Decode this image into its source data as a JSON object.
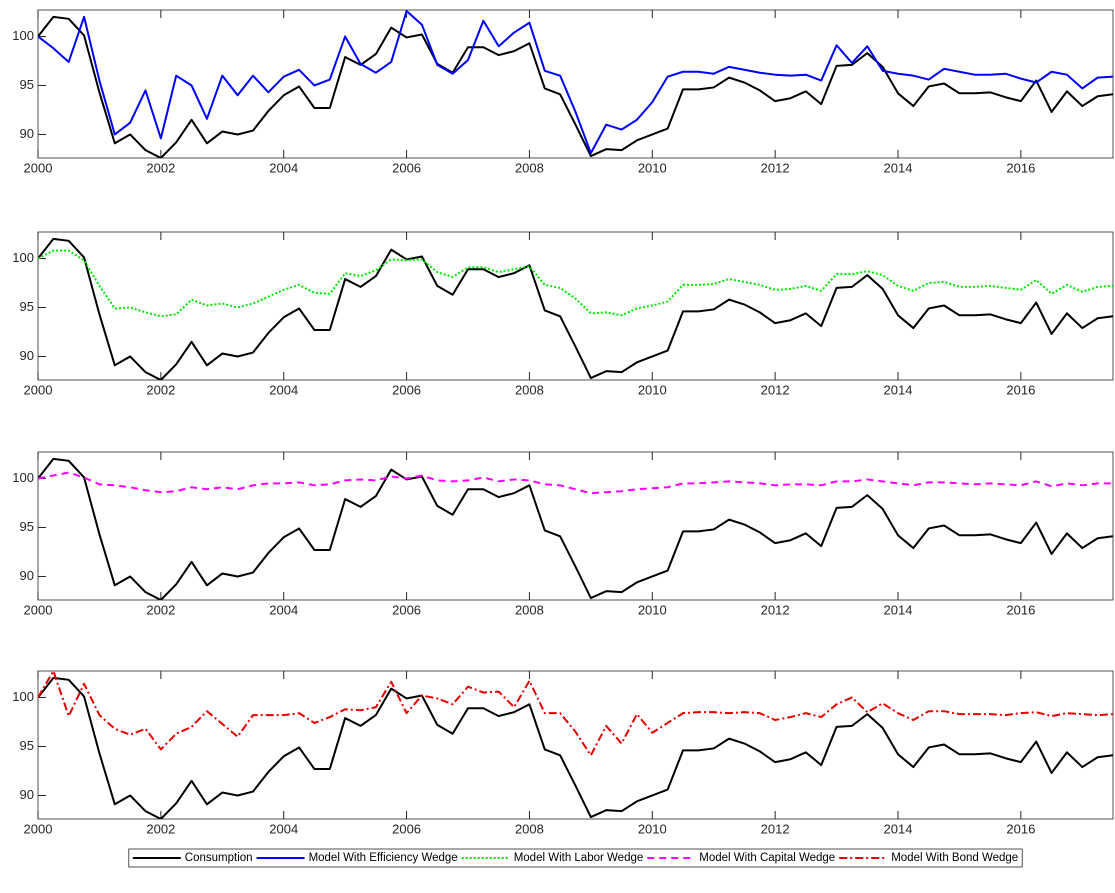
{
  "chart_data": [
    {
      "type": "line",
      "x": [
        2000,
        2000.25,
        2000.5,
        2000.75,
        2001,
        2001.25,
        2001.5,
        2001.75,
        2002,
        2002.25,
        2002.5,
        2002.75,
        2003,
        2003.25,
        2003.5,
        2003.75,
        2004,
        2004.25,
        2004.5,
        2004.75,
        2005,
        2005.25,
        2005.5,
        2005.75,
        2006,
        2006.25,
        2006.5,
        2006.75,
        2007,
        2007.25,
        2007.5,
        2007.75,
        2008,
        2008.25,
        2008.5,
        2008.75,
        2009,
        2009.25,
        2009.5,
        2009.75,
        2010,
        2010.25,
        2010.5,
        2010.75,
        2011,
        2011.25,
        2011.5,
        2011.75,
        2012,
        2012.25,
        2012.5,
        2012.75,
        2013,
        2013.25,
        2013.5,
        2013.75,
        2014,
        2014.25,
        2014.5,
        2014.75,
        2015,
        2015.25,
        2015.5,
        2015.75,
        2016,
        2016.25,
        2016.5,
        2016.75,
        2017,
        2017.25,
        2017.5
      ],
      "series": [
        {
          "name": "Consumption",
          "color": "#000000",
          "linestyle": "solid",
          "values": [
            100,
            102,
            101.8,
            100.1,
            94.3,
            89.1,
            90,
            88.4,
            87.6,
            89.2,
            91.5,
            89.1,
            90.3,
            90,
            90.4,
            92.4,
            94,
            94.9,
            92.7,
            92.7,
            97.9,
            97.1,
            98.2,
            100.9,
            99.9,
            100.2,
            97.2,
            96.3,
            98.9,
            98.9,
            98.1,
            98.5,
            99.3,
            94.7,
            94.1,
            91,
            87.8,
            88.5,
            88.4,
            89.4,
            90,
            90.6,
            94.6,
            94.6,
            94.8,
            95.8,
            95.3,
            94.5,
            93.4,
            93.7,
            94.4,
            93.1,
            97,
            97.1,
            98.3,
            96.9,
            94.2,
            92.9,
            94.9,
            95.2,
            94.2,
            94.2,
            94.3,
            93.8,
            93.4,
            95.5,
            92.3,
            94.4,
            92.9,
            93.9,
            94.1
          ]
        },
        {
          "name": "Model With Efficiency Wedge",
          "color": "#0000ff",
          "linestyle": "solid",
          "values": [
            100,
            98.8,
            97.4,
            102,
            95.5,
            90,
            91.2,
            94.5,
            89.6,
            96,
            95,
            91.6,
            96,
            94,
            96,
            94.3,
            95.9,
            96.6,
            95,
            95.6,
            100,
            97.2,
            96.3,
            97.4,
            102.6,
            101.2,
            97.1,
            96.2,
            97.6,
            101.6,
            99,
            100.4,
            101.4,
            96.5,
            96,
            92.3,
            88.1,
            91,
            90.5,
            91.5,
            93.3,
            95.9,
            96.4,
            96.4,
            96.2,
            96.9,
            96.6,
            96.3,
            96.1,
            96,
            96.1,
            95.5,
            99.1,
            97.3,
            99,
            96.5,
            96.2,
            96,
            95.6,
            96.7,
            96.4,
            96.1,
            96.1,
            96.2,
            95.7,
            95.3,
            96.4,
            96.1,
            94.7,
            95.8,
            95.9
          ]
        }
      ],
      "xlim": [
        2000,
        2017.5
      ],
      "ylim": [
        87.6,
        102.7
      ],
      "xticks": [
        2000,
        2002,
        2004,
        2006,
        2008,
        2010,
        2012,
        2014,
        2016
      ],
      "yticks": [
        90,
        95,
        100
      ]
    },
    {
      "type": "line",
      "x": [
        2000,
        2000.25,
        2000.5,
        2000.75,
        2001,
        2001.25,
        2001.5,
        2001.75,
        2002,
        2002.25,
        2002.5,
        2002.75,
        2003,
        2003.25,
        2003.5,
        2003.75,
        2004,
        2004.25,
        2004.5,
        2004.75,
        2005,
        2005.25,
        2005.5,
        2005.75,
        2006,
        2006.25,
        2006.5,
        2006.75,
        2007,
        2007.25,
        2007.5,
        2007.75,
        2008,
        2008.25,
        2008.5,
        2008.75,
        2009,
        2009.25,
        2009.5,
        2009.75,
        2010,
        2010.25,
        2010.5,
        2010.75,
        2011,
        2011.25,
        2011.5,
        2011.75,
        2012,
        2012.25,
        2012.5,
        2012.75,
        2013,
        2013.25,
        2013.5,
        2013.75,
        2014,
        2014.25,
        2014.5,
        2014.75,
        2015,
        2015.25,
        2015.5,
        2015.75,
        2016,
        2016.25,
        2016.5,
        2016.75,
        2017,
        2017.25,
        2017.5
      ],
      "series": [
        {
          "name": "Consumption",
          "color": "#000000",
          "linestyle": "solid",
          "values": [
            100,
            102,
            101.8,
            100.1,
            94.3,
            89.1,
            90,
            88.4,
            87.6,
            89.2,
            91.5,
            89.1,
            90.3,
            90,
            90.4,
            92.4,
            94,
            94.9,
            92.7,
            92.7,
            97.9,
            97.1,
            98.2,
            100.9,
            99.9,
            100.2,
            97.2,
            96.3,
            98.9,
            98.9,
            98.1,
            98.5,
            99.3,
            94.7,
            94.1,
            91,
            87.8,
            88.5,
            88.4,
            89.4,
            90,
            90.6,
            94.6,
            94.6,
            94.8,
            95.8,
            95.3,
            94.5,
            93.4,
            93.7,
            94.4,
            93.1,
            97,
            97.1,
            98.3,
            96.9,
            94.2,
            92.9,
            94.9,
            95.2,
            94.2,
            94.2,
            94.3,
            93.8,
            93.4,
            95.5,
            92.3,
            94.4,
            92.9,
            93.9,
            94.1
          ]
        },
        {
          "name": "Model With Labor Wedge",
          "color": "#00e600",
          "linestyle": "dotted",
          "values": [
            100,
            100.8,
            100.8,
            99.8,
            97.2,
            94.9,
            95,
            94.5,
            94.1,
            94.3,
            95.8,
            95.2,
            95.4,
            95,
            95.4,
            96.1,
            96.8,
            97.3,
            96.5,
            96.4,
            98.5,
            98.2,
            98.8,
            99.9,
            99.8,
            99.9,
            98.6,
            98.1,
            99.1,
            99.1,
            98.6,
            98.9,
            99.2,
            97.3,
            97,
            95.9,
            94.4,
            94.5,
            94.2,
            94.9,
            95.2,
            95.6,
            97.3,
            97.3,
            97.4,
            97.9,
            97.6,
            97.3,
            96.8,
            96.9,
            97.2,
            96.7,
            98.4,
            98.4,
            98.7,
            98.3,
            97.2,
            96.7,
            97.5,
            97.6,
            97.1,
            97.1,
            97.2,
            97,
            96.8,
            97.8,
            96.4,
            97.3,
            96.6,
            97.1,
            97.2
          ]
        }
      ],
      "xlim": [
        2000,
        2017.5
      ],
      "ylim": [
        87.6,
        102.7
      ],
      "xticks": [
        2000,
        2002,
        2004,
        2006,
        2008,
        2010,
        2012,
        2014,
        2016
      ],
      "yticks": [
        90,
        95,
        100
      ]
    },
    {
      "type": "line",
      "x": [
        2000,
        2000.25,
        2000.5,
        2000.75,
        2001,
        2001.25,
        2001.5,
        2001.75,
        2002,
        2002.25,
        2002.5,
        2002.75,
        2003,
        2003.25,
        2003.5,
        2003.75,
        2004,
        2004.25,
        2004.5,
        2004.75,
        2005,
        2005.25,
        2005.5,
        2005.75,
        2006,
        2006.25,
        2006.5,
        2006.75,
        2007,
        2007.25,
        2007.5,
        2007.75,
        2008,
        2008.25,
        2008.5,
        2008.75,
        2009,
        2009.25,
        2009.5,
        2009.75,
        2010,
        2010.25,
        2010.5,
        2010.75,
        2011,
        2011.25,
        2011.5,
        2011.75,
        2012,
        2012.25,
        2012.5,
        2012.75,
        2013,
        2013.25,
        2013.5,
        2013.75,
        2014,
        2014.25,
        2014.5,
        2014.75,
        2015,
        2015.25,
        2015.5,
        2015.75,
        2016,
        2016.25,
        2016.5,
        2016.75,
        2017,
        2017.25,
        2017.5
      ],
      "series": [
        {
          "name": "Consumption",
          "color": "#000000",
          "linestyle": "solid",
          "values": [
            100,
            102,
            101.8,
            100.1,
            94.3,
            89.1,
            90,
            88.4,
            87.6,
            89.2,
            91.5,
            89.1,
            90.3,
            90,
            90.4,
            92.4,
            94,
            94.9,
            92.7,
            92.7,
            97.9,
            97.1,
            98.2,
            100.9,
            99.9,
            100.2,
            97.2,
            96.3,
            98.9,
            98.9,
            98.1,
            98.5,
            99.3,
            94.7,
            94.1,
            91,
            87.8,
            88.5,
            88.4,
            89.4,
            90,
            90.6,
            94.6,
            94.6,
            94.8,
            95.8,
            95.3,
            94.5,
            93.4,
            93.7,
            94.4,
            93.1,
            97,
            97.1,
            98.3,
            96.9,
            94.2,
            92.9,
            94.9,
            95.2,
            94.2,
            94.2,
            94.3,
            93.8,
            93.4,
            95.5,
            92.3,
            94.4,
            92.9,
            93.9,
            94.1
          ]
        },
        {
          "name": "Model With Capital Wedge",
          "color": "#ff00ff",
          "linestyle": "dashed",
          "values": [
            100,
            100.3,
            100.6,
            100.1,
            99.4,
            99.3,
            99.1,
            98.8,
            98.6,
            98.7,
            99.1,
            98.9,
            99.1,
            98.9,
            99.3,
            99.5,
            99.5,
            99.6,
            99.3,
            99.4,
            99.8,
            99.9,
            99.8,
            100.2,
            100,
            100.3,
            99.8,
            99.7,
            99.8,
            100.1,
            99.7,
            99.9,
            99.8,
            99.4,
            99.3,
            98.9,
            98.5,
            98.6,
            98.7,
            98.9,
            99,
            99.1,
            99.5,
            99.5,
            99.6,
            99.7,
            99.6,
            99.5,
            99.3,
            99.4,
            99.4,
            99.3,
            99.7,
            99.7,
            99.9,
            99.7,
            99.5,
            99.3,
            99.6,
            99.6,
            99.5,
            99.4,
            99.5,
            99.4,
            99.3,
            99.7,
            99.2,
            99.5,
            99.3,
            99.5,
            99.5
          ]
        }
      ],
      "xlim": [
        2000,
        2017.5
      ],
      "ylim": [
        87.6,
        102.7
      ],
      "xticks": [
        2000,
        2002,
        2004,
        2006,
        2008,
        2010,
        2012,
        2014,
        2016
      ],
      "yticks": [
        90,
        95,
        100
      ]
    },
    {
      "type": "line",
      "x": [
        2000,
        2000.25,
        2000.5,
        2000.75,
        2001,
        2001.25,
        2001.5,
        2001.75,
        2002,
        2002.25,
        2002.5,
        2002.75,
        2003,
        2003.25,
        2003.5,
        2003.75,
        2004,
        2004.25,
        2004.5,
        2004.75,
        2005,
        2005.25,
        2005.5,
        2005.75,
        2006,
        2006.25,
        2006.5,
        2006.75,
        2007,
        2007.25,
        2007.5,
        2007.75,
        2008,
        2008.25,
        2008.5,
        2008.75,
        2009,
        2009.25,
        2009.5,
        2009.75,
        2010,
        2010.25,
        2010.5,
        2010.75,
        2011,
        2011.25,
        2011.5,
        2011.75,
        2012,
        2012.25,
        2012.5,
        2012.75,
        2013,
        2013.25,
        2013.5,
        2013.75,
        2014,
        2014.25,
        2014.5,
        2014.75,
        2015,
        2015.25,
        2015.5,
        2015.75,
        2016,
        2016.25,
        2016.5,
        2016.75,
        2017,
        2017.25,
        2017.5
      ],
      "series": [
        {
          "name": "Consumption",
          "color": "#000000",
          "linestyle": "solid",
          "values": [
            100,
            102,
            101.8,
            100.1,
            94.3,
            89.1,
            90,
            88.4,
            87.6,
            89.2,
            91.5,
            89.1,
            90.3,
            90,
            90.4,
            92.4,
            94,
            94.9,
            92.7,
            92.7,
            97.9,
            97.1,
            98.2,
            100.9,
            99.9,
            100.2,
            97.2,
            96.3,
            98.9,
            98.9,
            98.1,
            98.5,
            99.3,
            94.7,
            94.1,
            91,
            87.8,
            88.5,
            88.4,
            89.4,
            90,
            90.6,
            94.6,
            94.6,
            94.8,
            95.8,
            95.3,
            94.5,
            93.4,
            93.7,
            94.4,
            93.1,
            97,
            97.1,
            98.3,
            96.9,
            94.2,
            92.9,
            94.9,
            95.2,
            94.2,
            94.2,
            94.3,
            93.8,
            93.4,
            95.5,
            92.3,
            94.4,
            92.9,
            93.9,
            94.1
          ]
        },
        {
          "name": "Model With Bond Wedge",
          "color": "#e60000",
          "linestyle": "dashdot",
          "values": [
            100,
            102.7,
            98.1,
            101.4,
            98.2,
            96.8,
            96.2,
            96.8,
            94.7,
            96.3,
            97,
            98.6,
            97.3,
            96,
            98.2,
            98.2,
            98.2,
            98.4,
            97.4,
            98,
            98.8,
            98.7,
            99,
            101.6,
            98.4,
            100.2,
            99.9,
            99.3,
            101.1,
            100.5,
            100.6,
            99,
            101.7,
            98.4,
            98.4,
            96.5,
            94.1,
            97.1,
            95.3,
            98.3,
            96.4,
            97.4,
            98.4,
            98.5,
            98.5,
            98.4,
            98.5,
            98.4,
            97.7,
            98,
            98.4,
            98,
            99.3,
            100,
            98.5,
            99.4,
            98.4,
            97.7,
            98.6,
            98.6,
            98.3,
            98.3,
            98.3,
            98.2,
            98.4,
            98.5,
            98.1,
            98.4,
            98.3,
            98.2,
            98.3
          ]
        }
      ],
      "xlim": [
        2000,
        2017.5
      ],
      "ylim": [
        87.6,
        102.7
      ],
      "xticks": [
        2000,
        2002,
        2004,
        2006,
        2008,
        2010,
        2012,
        2014,
        2016
      ],
      "yticks": [
        90,
        95,
        100
      ],
      "legend": "bottom"
    }
  ]
}
